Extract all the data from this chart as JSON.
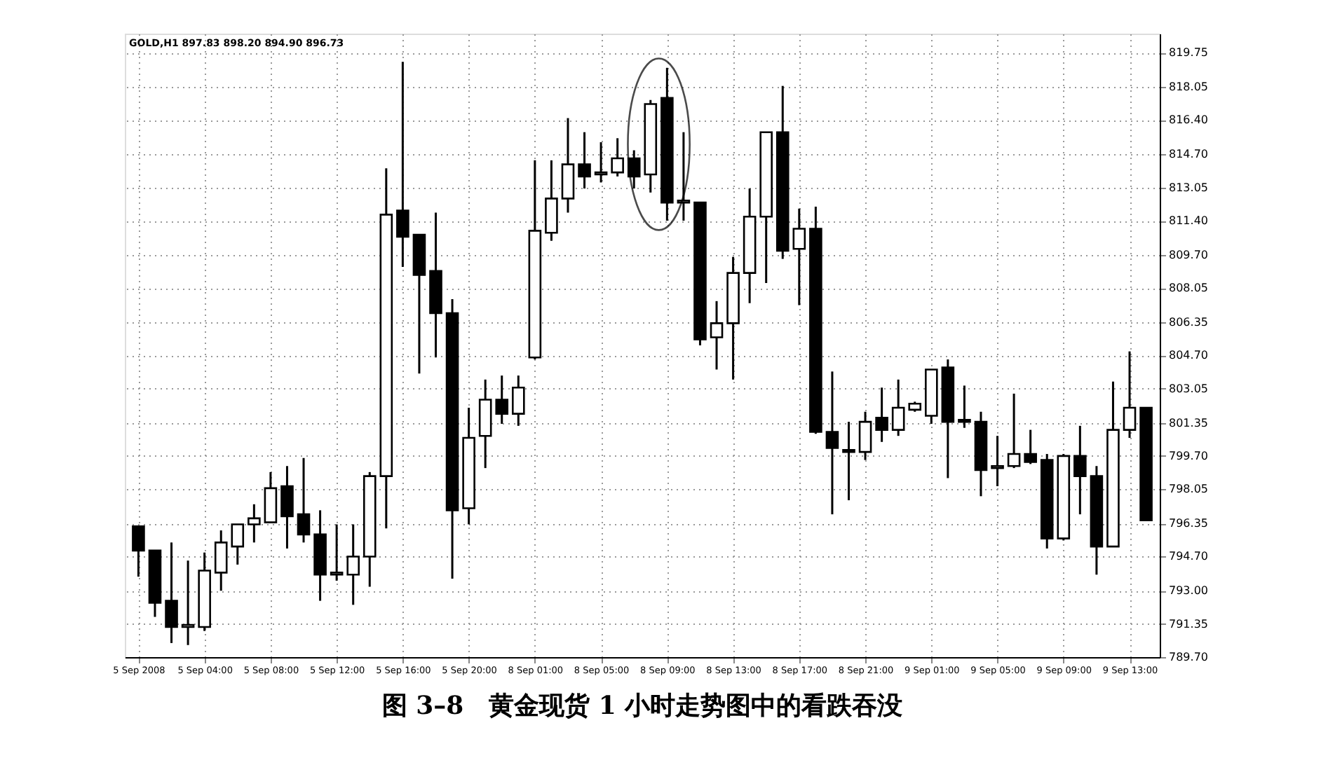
{
  "chart_data": {
    "type": "candlestick",
    "title": "图 3–8　黄金现货 1 小时走势图中的看跌吞没",
    "annotations": [
      "GOLD,H1 897.83 898.20 894.90 896.73"
    ],
    "categories": [
      "5 Sep 2008",
      null,
      null,
      null,
      "5 Sep 04:00",
      null,
      null,
      null,
      "5 Sep 08:00",
      null,
      null,
      null,
      "5 Sep 12:00",
      null,
      null,
      null,
      "5 Sep 16:00",
      null,
      null,
      null,
      "5 Sep 20:00",
      null,
      null,
      null,
      "8 Sep 01:00",
      null,
      null,
      null,
      "8 Sep 05:00",
      null,
      null,
      null,
      "8 Sep 09:00",
      null,
      null,
      null,
      "8 Sep 13:00",
      null,
      null,
      null,
      "8 Sep 17:00",
      null,
      null,
      null,
      "8 Sep 21:00",
      null,
      null,
      null,
      "9 Sep 01:00",
      null,
      null,
      null,
      "9 Sep 05:00",
      null,
      null,
      null,
      "9 Sep 09:00",
      null,
      null,
      null,
      "9 Sep 13:00",
      null
    ],
    "ohlc": [
      [
        796.2,
        796.2,
        793.7,
        795.0
      ],
      [
        795.0,
        795.0,
        791.7,
        792.4
      ],
      [
        792.5,
        795.4,
        790.4,
        791.2
      ],
      [
        791.2,
        794.5,
        790.3,
        791.3
      ],
      [
        791.2,
        794.9,
        791.0,
        794.0
      ],
      [
        793.9,
        796.0,
        793.0,
        795.4
      ],
      [
        795.2,
        796.3,
        794.3,
        796.3
      ],
      [
        796.3,
        797.3,
        795.4,
        796.6
      ],
      [
        796.4,
        798.9,
        796.4,
        798.1
      ],
      [
        798.2,
        799.2,
        795.1,
        796.7
      ],
      [
        796.8,
        799.6,
        795.4,
        795.8
      ],
      [
        795.8,
        797.0,
        792.5,
        793.8
      ],
      [
        793.8,
        796.3,
        793.5,
        793.9
      ],
      [
        793.8,
        796.3,
        792.3,
        794.7
      ],
      [
        794.7,
        798.9,
        793.2,
        798.7
      ],
      [
        798.7,
        814.0,
        796.1,
        811.7
      ],
      [
        811.9,
        819.3,
        809.1,
        810.6
      ],
      [
        810.7,
        810.7,
        803.8,
        808.7
      ],
      [
        808.9,
        811.8,
        804.6,
        806.8
      ],
      [
        806.8,
        807.5,
        793.6,
        797.0
      ],
      [
        797.1,
        802.1,
        796.3,
        800.6
      ],
      [
        800.7,
        803.5,
        799.1,
        802.5
      ],
      [
        802.5,
        803.7,
        801.3,
        801.8
      ],
      [
        801.8,
        803.7,
        801.2,
        803.1
      ],
      [
        804.6,
        814.4,
        804.5,
        810.9
      ],
      [
        810.8,
        814.4,
        810.4,
        812.5
      ],
      [
        812.5,
        816.5,
        811.8,
        814.2
      ],
      [
        814.2,
        815.8,
        813.0,
        813.6
      ],
      [
        813.7,
        815.3,
        813.3,
        813.8
      ],
      [
        813.8,
        815.5,
        813.6,
        814.5
      ],
      [
        814.5,
        814.9,
        813.0,
        813.6
      ],
      [
        813.7,
        817.4,
        812.8,
        817.2
      ],
      [
        817.5,
        819.0,
        811.4,
        812.3
      ],
      [
        812.3,
        815.8,
        811.4,
        812.4
      ],
      [
        812.3,
        812.3,
        805.2,
        805.5
      ],
      [
        805.6,
        807.4,
        804.0,
        806.3
      ],
      [
        806.3,
        809.6,
        803.5,
        808.8
      ],
      [
        808.8,
        813.0,
        807.3,
        811.6
      ],
      [
        811.6,
        815.8,
        808.3,
        815.8
      ],
      [
        815.8,
        818.1,
        809.5,
        809.9
      ],
      [
        810.0,
        812.0,
        807.2,
        811.0
      ],
      [
        811.0,
        812.1,
        800.8,
        800.9
      ],
      [
        800.9,
        803.9,
        796.8,
        800.1
      ],
      [
        800.0,
        801.4,
        797.5,
        799.9
      ],
      [
        799.9,
        801.9,
        799.5,
        801.4
      ],
      [
        801.6,
        803.1,
        800.4,
        801.0
      ],
      [
        801.0,
        803.5,
        800.7,
        802.1
      ],
      [
        802.0,
        802.4,
        801.9,
        802.3
      ],
      [
        801.7,
        804.0,
        801.3,
        804.0
      ],
      [
        804.1,
        804.5,
        798.6,
        801.4
      ],
      [
        801.5,
        803.2,
        801.1,
        801.4
      ],
      [
        801.4,
        801.9,
        797.7,
        799.0
      ],
      [
        799.1,
        800.7,
        798.2,
        799.2
      ],
      [
        799.2,
        802.8,
        799.1,
        799.8
      ],
      [
        799.8,
        801.0,
        799.3,
        799.4
      ],
      [
        799.5,
        799.8,
        795.1,
        795.6
      ],
      [
        795.6,
        799.8,
        795.5,
        799.7
      ],
      [
        799.7,
        801.2,
        796.8,
        798.7
      ],
      [
        798.7,
        799.2,
        793.8,
        795.2
      ],
      [
        795.2,
        803.4,
        795.2,
        801.0
      ],
      [
        801.0,
        804.9,
        800.6,
        802.1
      ],
      [
        802.1,
        802.1,
        796.5,
        796.5
      ]
    ],
    "colors": [
      "#000000",
      "#000000",
      "#000000",
      "#ffffff",
      "#ffffff",
      "#ffffff",
      "#ffffff",
      "#ffffff",
      "#ffffff",
      "#000000",
      "#000000",
      "#000000",
      "#ffffff",
      "#ffffff",
      "#ffffff",
      "#ffffff",
      "#000000",
      "#000000",
      "#000000",
      "#000000",
      "#ffffff",
      "#ffffff",
      "#000000",
      "#ffffff",
      "#ffffff",
      "#ffffff",
      "#ffffff",
      "#000000",
      "#ffffff",
      "#ffffff",
      "#000000",
      "#ffffff",
      "#000000",
      "#ffffff",
      "#000000",
      "#ffffff",
      "#ffffff",
      "#ffffff",
      "#ffffff",
      "#000000",
      "#ffffff",
      "#000000",
      "#000000",
      "#000000",
      "#ffffff",
      "#000000",
      "#ffffff",
      "#ffffff",
      "#ffffff",
      "#000000",
      "#000000",
      "#000000",
      "#ffffff",
      "#ffffff",
      "#000000",
      "#000000",
      "#ffffff",
      "#000000",
      "#000000",
      "#ffffff",
      "#ffffff",
      "#000000"
    ],
    "ylim": [
      789.7,
      820.7
    ],
    "yticks": [
      {
        "value": 819.75,
        "label": "819.75"
      },
      {
        "value": 818.05,
        "label": "818.05"
      },
      {
        "value": 816.4,
        "label": "816.40"
      },
      {
        "value": 814.7,
        "label": "814.70"
      },
      {
        "value": 813.05,
        "label": "813.05"
      },
      {
        "value": 811.4,
        "label": "811.40"
      },
      {
        "value": 809.7,
        "label": "809.70"
      },
      {
        "value": 808.05,
        "label": "808.05"
      },
      {
        "value": 806.35,
        "label": "806.35"
      },
      {
        "value": 804.7,
        "label": "804.70"
      },
      {
        "value": 803.05,
        "label": "803.05"
      },
      {
        "value": 801.35,
        "label": "801.35"
      },
      {
        "value": 799.7,
        "label": "799.70"
      },
      {
        "value": 798.05,
        "label": "798.05"
      },
      {
        "value": 796.35,
        "label": "796.35"
      },
      {
        "value": 794.7,
        "label": "794.70"
      },
      {
        "value": 793.0,
        "label": "793.00"
      },
      {
        "value": 791.35,
        "label": "791.35"
      },
      {
        "value": 789.7,
        "label": "789.70"
      }
    ],
    "grid": true
  }
}
